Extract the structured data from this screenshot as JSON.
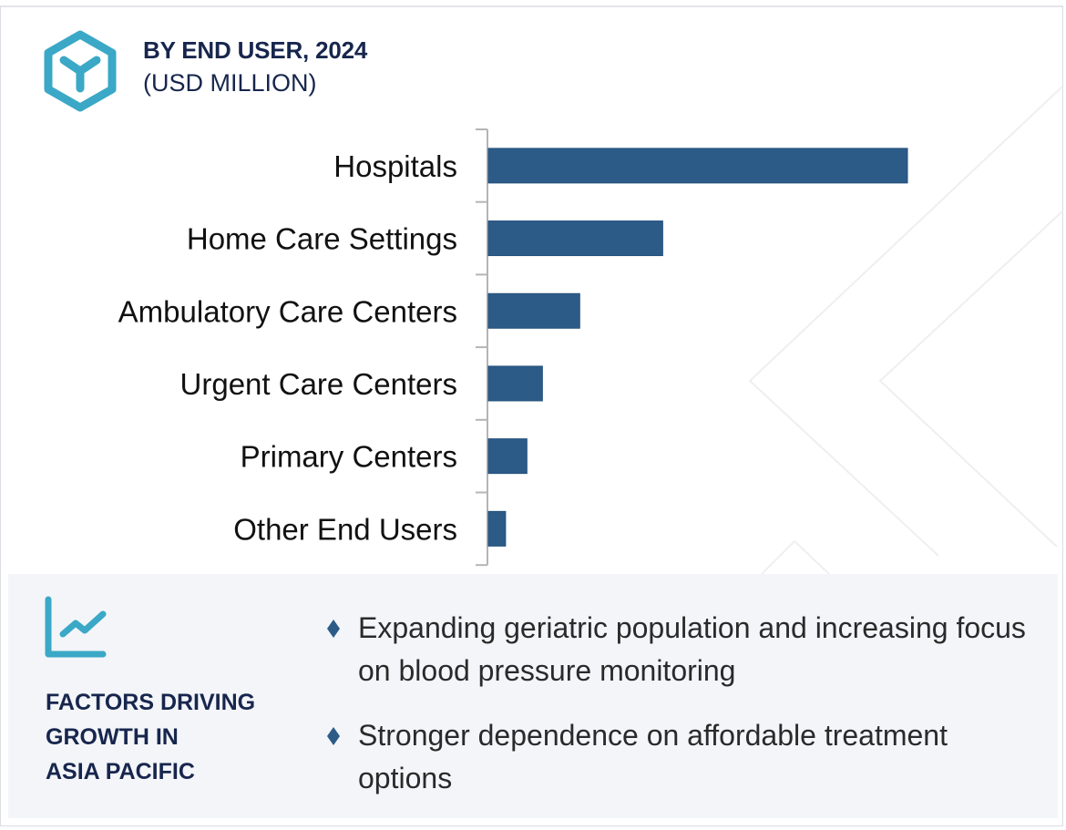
{
  "header": {
    "icon": "hexagon-y-icon",
    "title": "BY END USER, 2024",
    "subtitle": "(USD MILLION)"
  },
  "colors": {
    "bar": "#2c5b88",
    "accent": "#3aa8c6",
    "title": "#17264d",
    "panel_bg": "#f3f5f9",
    "axis": "#b5b5b5",
    "deco_line": "#efefef"
  },
  "chart_data": {
    "type": "bar",
    "orientation": "horizontal",
    "title": "BY END USER, 2024",
    "subtitle": "(USD MILLION)",
    "xlabel": "",
    "ylabel": "",
    "value_note": "No value axis shown; values are relative estimates from bar lengths (Hospitals = 100)",
    "categories": [
      "Hospitals",
      "Home Care Settings",
      "Ambulatory Care Centers",
      "Urgent Care Centers",
      "Primary Centers",
      "Other End Users"
    ],
    "values": [
      100,
      41.6,
      21.8,
      12.9,
      9.2,
      4.1
    ],
    "xlim": [
      0,
      100
    ],
    "grid": false,
    "legend": "none"
  },
  "factors": {
    "icon": "trend-chart-icon",
    "heading_lines": [
      "FACTORS DRIVING",
      "GROWTH IN",
      "ASIA PACIFIC"
    ],
    "bullets": [
      "Expanding geriatric population and increasing focus on blood pressure monitoring",
      "Stronger dependence on affordable treatment options"
    ]
  }
}
